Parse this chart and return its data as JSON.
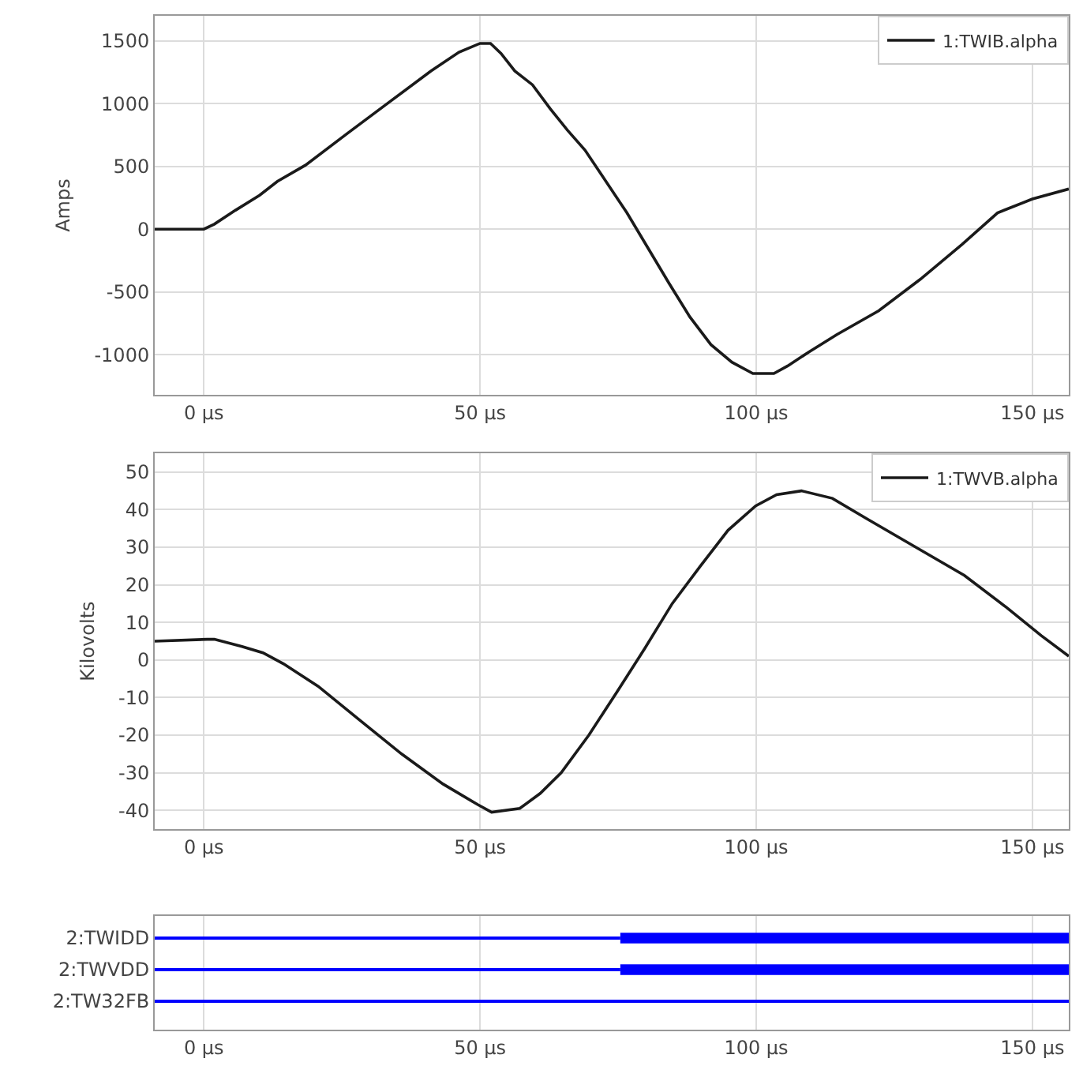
{
  "chart_data": [
    {
      "type": "line",
      "ylabel": "Amps",
      "legend": "top right",
      "grid": true,
      "marker": "none",
      "line_style": "solid",
      "xlim": [
        -8.9,
        156.6
      ],
      "xticks": [
        {
          "value": 0,
          "label": "0 µs"
        },
        {
          "value": 50,
          "label": "50 µs"
        },
        {
          "value": 100,
          "label": "100 µs"
        },
        {
          "value": 150,
          "label": "150 µs"
        }
      ],
      "ylim": [
        -1320,
        1700
      ],
      "yticks": [
        -1000,
        -500,
        0,
        500,
        1000,
        1500
      ],
      "series": [
        {
          "name": "1:TWIB.alpha",
          "color": "#1a1a1a",
          "x": [
            -8.9,
            0,
            1.9,
            5.7,
            10.1,
            13.3,
            18.4,
            25.9,
            33.5,
            41.1,
            46.2,
            50,
            51.9,
            53.8,
            56.3,
            59.5,
            62.7,
            65.8,
            69,
            72.8,
            76.6,
            80.4,
            84.2,
            88,
            91.8,
            95.6,
            99.4,
            103.2,
            105.7,
            109.5,
            114.6,
            122.2,
            129.7,
            137.3,
            143.7,
            150,
            156.6
          ],
          "values": [
            0,
            0,
            40,
            150,
            270,
            380,
            510,
            760,
            1010,
            1260,
            1410,
            1480,
            1480,
            1400,
            1260,
            1150,
            960,
            790,
            630,
            380,
            130,
            -150,
            -430,
            -700,
            -920,
            -1060,
            -1150,
            -1150,
            -1090,
            -980,
            -840,
            -650,
            -400,
            -120,
            130,
            240,
            320
          ]
        }
      ]
    },
    {
      "type": "line",
      "ylabel": "Kilovolts",
      "legend": "top right",
      "grid": true,
      "marker": "none",
      "line_style": "solid",
      "xlim": [
        -8.9,
        156.6
      ],
      "xticks": [
        {
          "value": 0,
          "label": "0 µs"
        },
        {
          "value": 50,
          "label": "50 µs"
        },
        {
          "value": 100,
          "label": "100 µs"
        },
        {
          "value": 150,
          "label": "150 µs"
        }
      ],
      "ylim": [
        -45,
        55
      ],
      "yticks": [
        -40,
        -30,
        -20,
        -10,
        0,
        10,
        20,
        30,
        40,
        50
      ],
      "series": [
        {
          "name": "1:TWVB.alpha",
          "color": "#1a1a1a",
          "x": [
            -8.9,
            0.6,
            1.9,
            6.9,
            10.7,
            14.4,
            20.7,
            28.2,
            35.8,
            43.3,
            49.6,
            52.1,
            57.2,
            60.9,
            64.7,
            69.7,
            74.8,
            79.8,
            84.8,
            89.9,
            94.9,
            99.9,
            103.7,
            108.2,
            113.8,
            120.1,
            128.9,
            137.7,
            145.3,
            151.6,
            156.6
          ],
          "values": [
            5,
            5.5,
            5.5,
            3.6,
            1.9,
            -1,
            -7,
            -16,
            -25,
            -33,
            -38.5,
            -40.5,
            -39.5,
            -35.5,
            -30,
            -20,
            -8.5,
            3,
            15,
            25,
            34.5,
            41,
            44,
            45,
            43,
            37.5,
            30,
            22.5,
            14,
            6.5,
            1
          ]
        }
      ]
    },
    {
      "type": "bar",
      "orientation": "horizontal",
      "grid": "x",
      "categories": [
        "2:TWIDD",
        "2:TWVDD",
        "2:TW32FB"
      ],
      "xlim": [
        -8.9,
        156.6
      ],
      "xticks": [
        {
          "value": 0,
          "label": "0 µs"
        },
        {
          "value": 50,
          "label": "50 µs"
        },
        {
          "value": 100,
          "label": "100 µs"
        },
        {
          "value": 150,
          "label": "150 µs"
        }
      ],
      "series": [
        {
          "color": "#0000ff",
          "base": [
            -8.9,
            -8.9,
            -8.9
          ],
          "values": [
            84.3,
            84.3,
            165.5
          ]
        },
        {
          "color": "#0000ff",
          "base": [
            75.4,
            75.4,
            null
          ],
          "values": [
            81.2,
            81.2,
            null
          ]
        }
      ]
    }
  ]
}
